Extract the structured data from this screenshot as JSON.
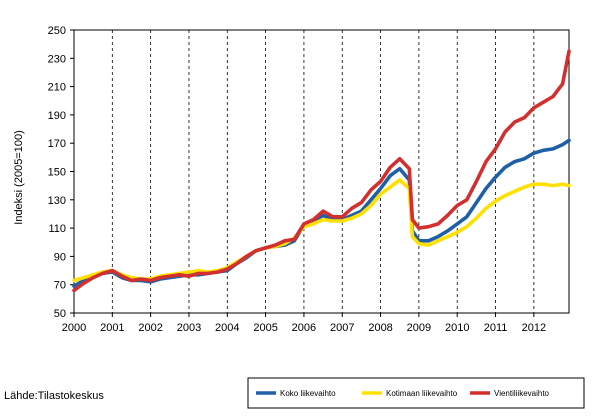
{
  "chart_data": {
    "type": "line",
    "title": "",
    "xlabel": "",
    "ylabel": "Indeksi (2005=100)",
    "ylim": [
      50,
      250
    ],
    "yticks": [
      50,
      70,
      90,
      110,
      130,
      150,
      170,
      190,
      210,
      230,
      250
    ],
    "xlim": [
      2000,
      2012.917
    ],
    "xticks": [
      "2000",
      "2001",
      "2002",
      "2003",
      "2004",
      "2005",
      "2006",
      "2007",
      "2008",
      "2009",
      "2010",
      "2011",
      "2012"
    ],
    "grid": "vertical dashed at year boundaries",
    "legend_position": "bottom-right",
    "series": [
      {
        "name": "Koko liikevaihto",
        "color": "#1f5fa8",
        "points": [
          [
            2000.0,
            69
          ],
          [
            2000.25,
            73
          ],
          [
            2000.5,
            76
          ],
          [
            2000.75,
            78
          ],
          [
            2001.0,
            79
          ],
          [
            2001.25,
            75
          ],
          [
            2001.5,
            73
          ],
          [
            2001.75,
            73
          ],
          [
            2002.0,
            72
          ],
          [
            2002.25,
            74
          ],
          [
            2002.5,
            75
          ],
          [
            2002.75,
            76
          ],
          [
            2003.0,
            77
          ],
          [
            2003.25,
            77
          ],
          [
            2003.5,
            78
          ],
          [
            2003.75,
            79
          ],
          [
            2004.0,
            80
          ],
          [
            2004.25,
            85
          ],
          [
            2004.5,
            89
          ],
          [
            2004.75,
            94
          ],
          [
            2005.0,
            96
          ],
          [
            2005.25,
            97
          ],
          [
            2005.5,
            98
          ],
          [
            2005.75,
            101
          ],
          [
            2006.0,
            112
          ],
          [
            2006.25,
            115
          ],
          [
            2006.5,
            119
          ],
          [
            2006.75,
            116
          ],
          [
            2007.0,
            116
          ],
          [
            2007.25,
            119
          ],
          [
            2007.5,
            122
          ],
          [
            2007.75,
            130
          ],
          [
            2008.0,
            138
          ],
          [
            2008.25,
            147
          ],
          [
            2008.5,
            152
          ],
          [
            2008.75,
            144
          ],
          [
            2008.83,
            108
          ],
          [
            2009.0,
            101
          ],
          [
            2009.25,
            101
          ],
          [
            2009.5,
            104
          ],
          [
            2009.75,
            108
          ],
          [
            2010.0,
            113
          ],
          [
            2010.25,
            118
          ],
          [
            2010.5,
            128
          ],
          [
            2010.75,
            138
          ],
          [
            2011.0,
            146
          ],
          [
            2011.25,
            153
          ],
          [
            2011.5,
            157
          ],
          [
            2011.75,
            159
          ],
          [
            2012.0,
            163
          ],
          [
            2012.25,
            165
          ],
          [
            2012.5,
            166
          ],
          [
            2012.75,
            169
          ],
          [
            2012.917,
            172
          ]
        ]
      },
      {
        "name": "Kotimaan liikevaihto",
        "color": "#ffe000",
        "points": [
          [
            2000.0,
            73
          ],
          [
            2000.25,
            75
          ],
          [
            2000.5,
            77
          ],
          [
            2000.75,
            79
          ],
          [
            2001.0,
            80
          ],
          [
            2001.25,
            77
          ],
          [
            2001.5,
            75
          ],
          [
            2001.75,
            74
          ],
          [
            2002.0,
            74
          ],
          [
            2002.25,
            76
          ],
          [
            2002.5,
            77
          ],
          [
            2002.75,
            78
          ],
          [
            2003.0,
            79
          ],
          [
            2003.25,
            80
          ],
          [
            2003.5,
            79
          ],
          [
            2003.75,
            80
          ],
          [
            2004.0,
            82
          ],
          [
            2004.25,
            86
          ],
          [
            2004.5,
            90
          ],
          [
            2004.75,
            94
          ],
          [
            2005.0,
            96
          ],
          [
            2005.25,
            97
          ],
          [
            2005.5,
            99
          ],
          [
            2005.75,
            103
          ],
          [
            2006.0,
            111
          ],
          [
            2006.25,
            113
          ],
          [
            2006.5,
            116
          ],
          [
            2006.75,
            115
          ],
          [
            2007.0,
            115
          ],
          [
            2007.25,
            117
          ],
          [
            2007.5,
            120
          ],
          [
            2007.75,
            126
          ],
          [
            2008.0,
            134
          ],
          [
            2008.25,
            139
          ],
          [
            2008.5,
            144
          ],
          [
            2008.75,
            138
          ],
          [
            2008.83,
            104
          ],
          [
            2009.0,
            99
          ],
          [
            2009.25,
            98
          ],
          [
            2009.5,
            101
          ],
          [
            2009.75,
            104
          ],
          [
            2010.0,
            107
          ],
          [
            2010.25,
            111
          ],
          [
            2010.5,
            117
          ],
          [
            2010.75,
            124
          ],
          [
            2011.0,
            129
          ],
          [
            2011.25,
            133
          ],
          [
            2011.5,
            136
          ],
          [
            2011.75,
            139
          ],
          [
            2012.0,
            141
          ],
          [
            2012.25,
            141
          ],
          [
            2012.5,
            140
          ],
          [
            2012.75,
            141
          ],
          [
            2012.917,
            140
          ]
        ]
      },
      {
        "name": "Vientiliikevaihto",
        "color": "#d32f2f",
        "points": [
          [
            2000.0,
            66
          ],
          [
            2000.25,
            71
          ],
          [
            2000.5,
            75
          ],
          [
            2000.75,
            78
          ],
          [
            2001.0,
            80
          ],
          [
            2001.25,
            76
          ],
          [
            2001.5,
            73
          ],
          [
            2001.75,
            74
          ],
          [
            2002.0,
            73
          ],
          [
            2002.25,
            75
          ],
          [
            2002.5,
            76
          ],
          [
            2002.75,
            77
          ],
          [
            2003.0,
            76
          ],
          [
            2003.25,
            78
          ],
          [
            2003.5,
            78
          ],
          [
            2003.75,
            79
          ],
          [
            2004.0,
            81
          ],
          [
            2004.25,
            85
          ],
          [
            2004.5,
            90
          ],
          [
            2004.75,
            94
          ],
          [
            2005.0,
            96
          ],
          [
            2005.25,
            98
          ],
          [
            2005.5,
            101
          ],
          [
            2005.75,
            102
          ],
          [
            2006.0,
            113
          ],
          [
            2006.25,
            116
          ],
          [
            2006.5,
            122
          ],
          [
            2006.75,
            118
          ],
          [
            2007.0,
            118
          ],
          [
            2007.25,
            124
          ],
          [
            2007.5,
            128
          ],
          [
            2007.75,
            137
          ],
          [
            2008.0,
            143
          ],
          [
            2008.25,
            153
          ],
          [
            2008.5,
            159
          ],
          [
            2008.75,
            152
          ],
          [
            2008.83,
            116
          ],
          [
            2009.0,
            110
          ],
          [
            2009.25,
            111
          ],
          [
            2009.5,
            113
          ],
          [
            2009.75,
            119
          ],
          [
            2010.0,
            126
          ],
          [
            2010.25,
            130
          ],
          [
            2010.5,
            143
          ],
          [
            2010.75,
            157
          ],
          [
            2011.0,
            166
          ],
          [
            2011.25,
            178
          ],
          [
            2011.5,
            185
          ],
          [
            2011.75,
            188
          ],
          [
            2012.0,
            195
          ],
          [
            2012.25,
            199
          ],
          [
            2012.5,
            203
          ],
          [
            2012.75,
            212
          ],
          [
            2012.917,
            235
          ]
        ]
      }
    ]
  },
  "source_text": "Lähde:Tilastokeskus"
}
